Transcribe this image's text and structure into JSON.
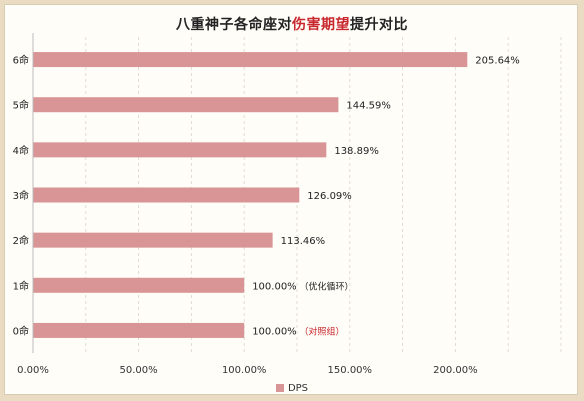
{
  "title": {
    "before": "八重神子各命座对",
    "highlight": "伤害期望",
    "after": "提升对比"
  },
  "colors": {
    "bar": "#d99595",
    "note": "#c8272d",
    "grid": "#e2dbd3"
  },
  "chart_data": {
    "type": "bar",
    "orientation": "horizontal",
    "categories": [
      "6命",
      "5命",
      "4命",
      "3命",
      "2命",
      "1命",
      "0命"
    ],
    "values": [
      205.64,
      144.59,
      138.89,
      126.09,
      113.46,
      100.0,
      100.0
    ],
    "data_labels": [
      "205.64%",
      "144.59%",
      "138.89%",
      "126.09%",
      "113.46%",
      "100.00%",
      "100.00%"
    ],
    "annotations": [
      "",
      "",
      "",
      "",
      "",
      "（优化循环）",
      "（对照组）"
    ],
    "x_ticks": [
      0,
      50,
      100,
      150,
      200
    ],
    "x_tick_labels": [
      "0.00%",
      "50.00%",
      "100.00%",
      "150.00%",
      "200.00%"
    ],
    "xlim": [
      0,
      250
    ],
    "grid": true,
    "legend": {
      "position": "bottom",
      "entries": [
        "DPS"
      ]
    }
  }
}
